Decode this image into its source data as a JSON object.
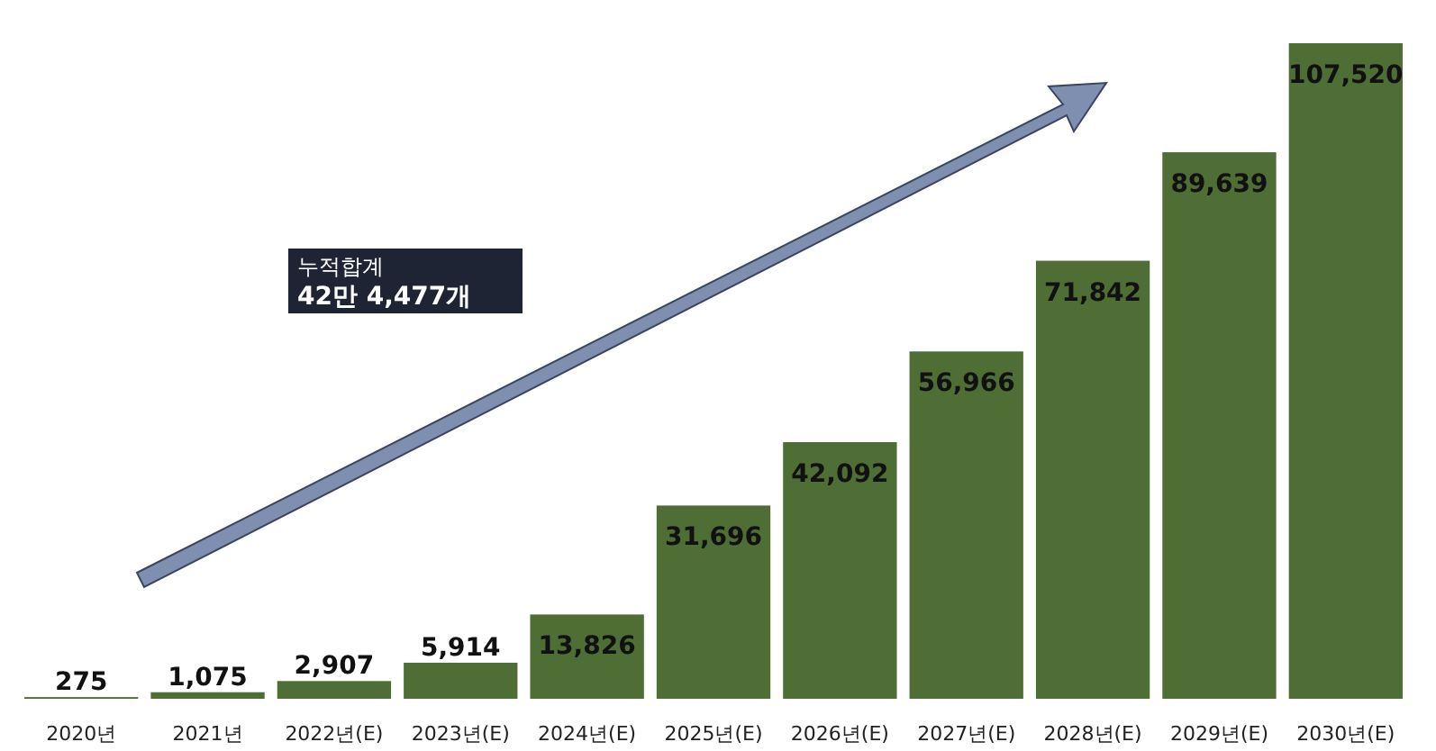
{
  "chart_data": {
    "type": "bar",
    "categories": [
      "2020년",
      "2021년",
      "2022년(E)",
      "2023년(E)",
      "2024년(E)",
      "2025년(E)",
      "2026년(E)",
      "2027년(E)",
      "2028년(E)",
      "2029년(E)",
      "2030년(E)"
    ],
    "values": [
      275,
      1075,
      2907,
      5914,
      13826,
      31696,
      42092,
      56966,
      71842,
      89639,
      107520
    ],
    "color": "#4e6e35",
    "value_labels": [
      "275",
      "1,075",
      "2,907",
      "5,914",
      "13,826",
      "31,696",
      "42,092",
      "56,966",
      "71,842",
      "89,639",
      "107,520"
    ],
    "annotations": [
      "누적합계",
      "42만 4,477개"
    ]
  }
}
